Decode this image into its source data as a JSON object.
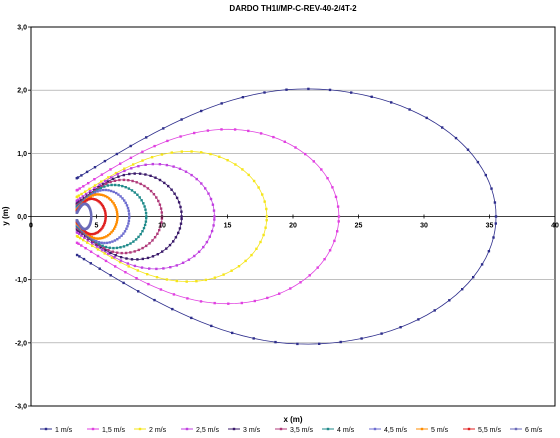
{
  "chart_data": {
    "type": "scatter",
    "title": "DARDO TH1I/MP-C-REV-40-2/4T-2",
    "xlabel": "x (m)",
    "ylabel": "y (m)",
    "xlim": [
      0,
      40
    ],
    "ylim": [
      -3,
      3
    ],
    "x_ticks": [
      "0",
      "5",
      "10",
      "15",
      "20",
      "25",
      "30",
      "35",
      "40"
    ],
    "y_ticks": [
      "3,0",
      "2,0",
      "1,0",
      "0,0",
      "-1,0",
      "-2,0",
      "-3,0"
    ],
    "grid": "horizontal",
    "legend_position": "bottom",
    "series": [
      {
        "name": "1 m/s",
        "color": "#2E2E8C",
        "x0": 3.5,
        "xtip": 35.5,
        "xpk": 21,
        "ypk": 2.02
      },
      {
        "name": "1,5 m/s",
        "color": "#E040E0",
        "x0": 3.5,
        "xtip": 23.5,
        "xpk": 15,
        "ypk": 1.38
      },
      {
        "name": "2 m/s",
        "color": "#F5E51A",
        "x0": 3.5,
        "xtip": 18.0,
        "xpk": 12,
        "ypk": 1.03
      },
      {
        "name": "2,5 m/s",
        "color": "#C040E0",
        "x0": 3.5,
        "xtip": 14.0,
        "xpk": 9.5,
        "ypk": 0.83
      },
      {
        "name": "3 m/s",
        "color": "#3A1A6A",
        "x0": 3.5,
        "xtip": 11.5,
        "xpk": 8.0,
        "ypk": 0.68
      },
      {
        "name": "3,5 m/s",
        "color": "#B03A7A",
        "x0": 3.5,
        "xtip": 10.0,
        "xpk": 7.0,
        "ypk": 0.58
      },
      {
        "name": "4 m/s",
        "color": "#1F8A8A",
        "x0": 3.5,
        "xtip": 8.8,
        "xpk": 6.3,
        "ypk": 0.5
      },
      {
        "name": "4,5 m/s",
        "color": "#6E6ED0",
        "x0": 3.5,
        "xtip": 7.5,
        "xpk": 5.6,
        "ypk": 0.42
      },
      {
        "name": "5 m/s",
        "color": "#FF8C00",
        "x0": 3.5,
        "xtip": 6.6,
        "xpk": 5.1,
        "ypk": 0.35
      },
      {
        "name": "5,5 m/s",
        "color": "#E02020",
        "x0": 3.5,
        "xtip": 5.7,
        "xpk": 4.6,
        "ypk": 0.28
      },
      {
        "name": "6 m/s",
        "color": "#6A6AB8",
        "x0": 3.5,
        "xtip": 4.6,
        "xpk": 4.1,
        "ypk": 0.2
      }
    ]
  }
}
